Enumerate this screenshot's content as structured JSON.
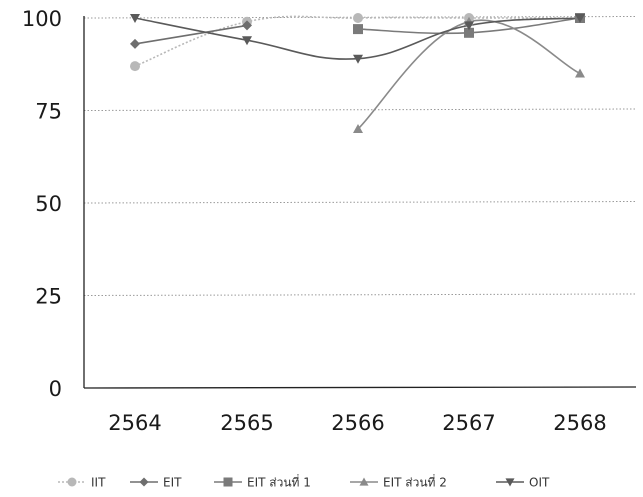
{
  "chart_data": {
    "type": "line",
    "categories": [
      "2564",
      "2565",
      "2566",
      "2567",
      "2568"
    ],
    "y_ticks": [
      "0",
      "25",
      "50",
      "75",
      "100"
    ],
    "ylim": [
      0,
      100
    ],
    "grid": true,
    "legend_position": "bottom",
    "series": [
      {
        "name": "IIT",
        "marker": "circle",
        "color": "#b8b8b8",
        "dash": "dotted",
        "values": [
          87,
          99,
          100,
          100,
          100
        ]
      },
      {
        "name": "EIT",
        "marker": "diamond",
        "color": "#6e6e6e",
        "dash": "solid",
        "values": [
          93,
          98,
          null,
          null,
          null
        ]
      },
      {
        "name": "EIT ส่วนที่ 1",
        "marker": "square",
        "color": "#7a7a7a",
        "dash": "solid",
        "values": [
          null,
          null,
          97,
          96,
          100
        ]
      },
      {
        "name": "EIT ส่วนที่ 2",
        "marker": "triangle-up",
        "color": "#8a8a8a",
        "dash": "solid",
        "values": [
          null,
          null,
          70,
          99,
          85
        ]
      },
      {
        "name": "OIT",
        "marker": "triangle-down",
        "color": "#5a5a5a",
        "dash": "solid",
        "values": [
          100,
          94,
          89,
          98,
          100
        ]
      }
    ]
  }
}
